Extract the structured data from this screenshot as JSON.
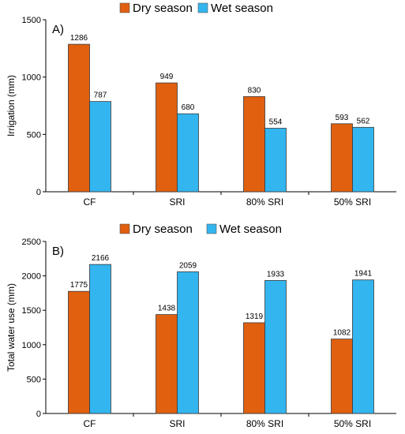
{
  "chart_data": [
    {
      "type": "bar",
      "panel_label": "A)",
      "ylabel": "Irrigation (mm)",
      "ylim": [
        0,
        1500
      ],
      "yticks": [
        0,
        500,
        1000,
        1500
      ],
      "categories": [
        "CF",
        "SRI",
        "80% SRI",
        "50% SRI"
      ],
      "legend_position": "top",
      "series": [
        {
          "name": "Dry season",
          "color": "#E06010",
          "values": [
            1286,
            949,
            830,
            593
          ]
        },
        {
          "name": "Wet season",
          "color": "#33B5F0",
          "values": [
            787,
            680,
            554,
            562
          ]
        }
      ]
    },
    {
      "type": "bar",
      "panel_label": "B)",
      "ylabel": "Total water use (mm)",
      "ylim": [
        0,
        2500
      ],
      "yticks": [
        0,
        500,
        1000,
        1500,
        2000,
        2500
      ],
      "categories": [
        "CF",
        "SRI",
        "80% SRI",
        "50% SRI"
      ],
      "legend_position": "top",
      "series": [
        {
          "name": "Dry season",
          "color": "#E06010",
          "values": [
            1775,
            1438,
            1319,
            1082
          ]
        },
        {
          "name": "Wet season",
          "color": "#33B5F0",
          "values": [
            2166,
            2059,
            1933,
            1941
          ]
        }
      ]
    }
  ]
}
